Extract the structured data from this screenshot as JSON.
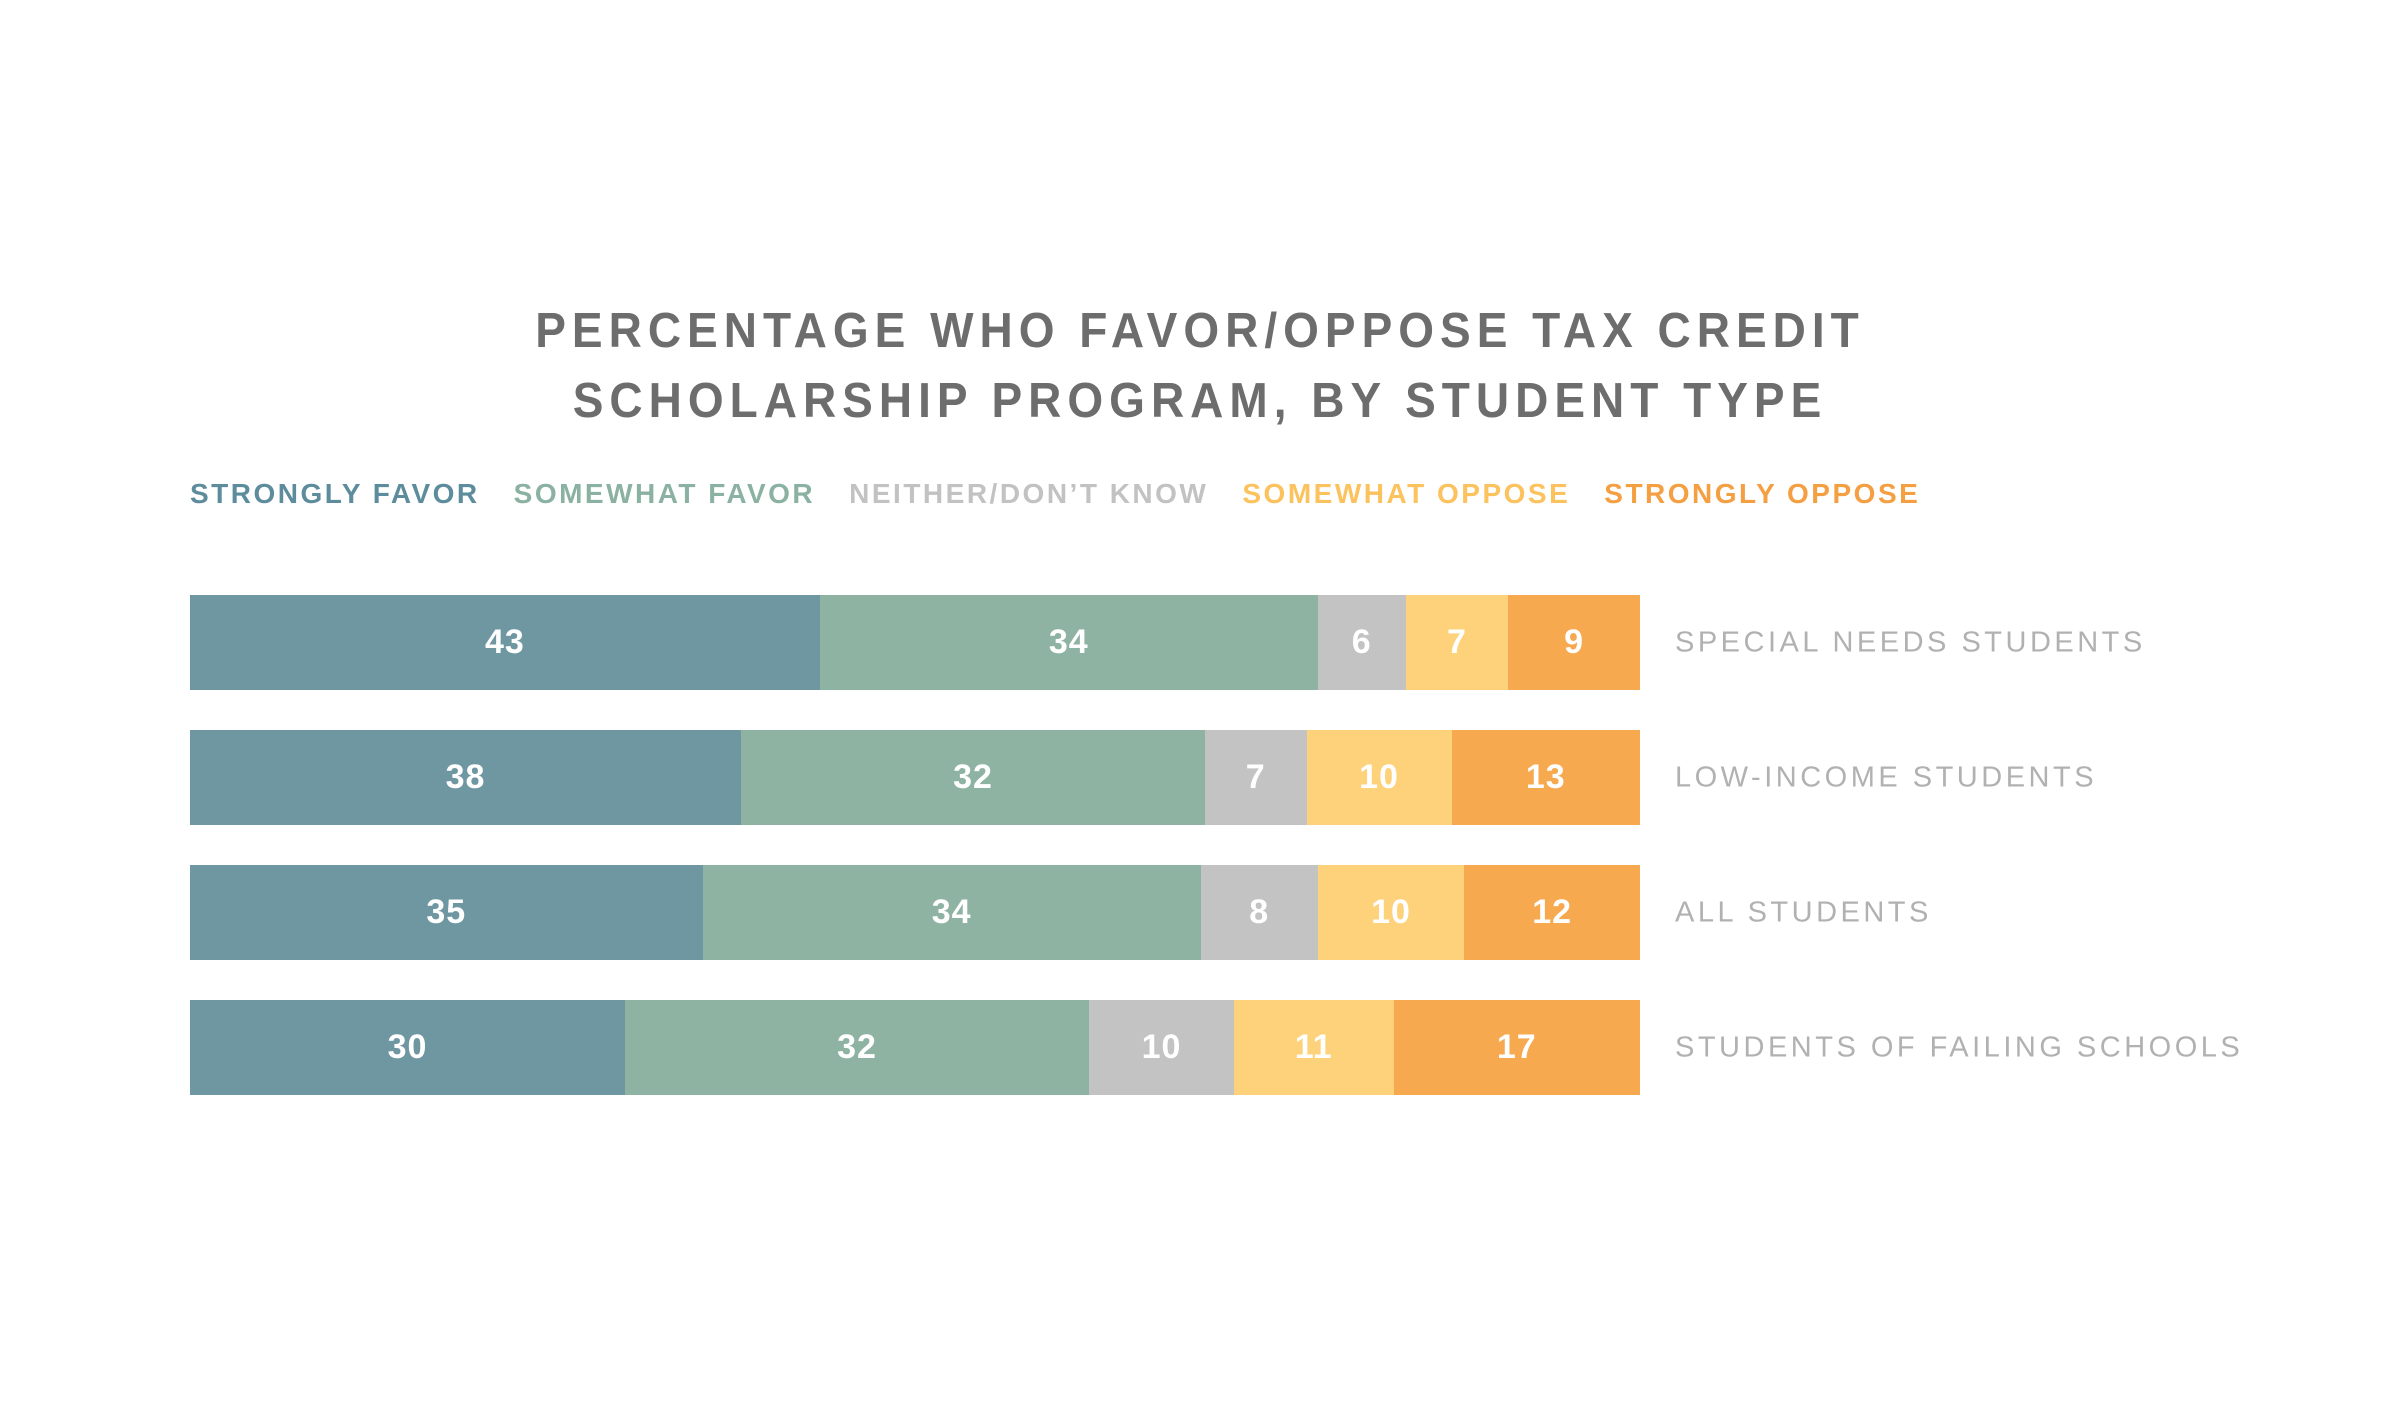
{
  "title": {
    "line1": "PERCENTAGE WHO FAVOR/OPPOSE TAX CREDIT",
    "line2": "SCHOLARSHIP PROGRAM, BY STUDENT TYPE"
  },
  "legend": [
    {
      "label": "STRONGLY FAVOR",
      "color": "#5d8d9d"
    },
    {
      "label": "SOMEWHAT FAVOR",
      "color": "#8ab1a1"
    },
    {
      "label": "NEITHER/DON’T KNOW",
      "color": "#c2c2c2"
    },
    {
      "label": "SOMEWHAT OPPOSE",
      "color": "#fbc25e"
    },
    {
      "label": "STRONGLY OPPOSE",
      "color": "#f59f43"
    }
  ],
  "chart_data": {
    "type": "bar",
    "orientation": "horizontal-stacked",
    "title": "PERCENTAGE WHO FAVOR/OPPOSE TAX CREDIT SCHOLARSHIP PROGRAM, BY STUDENT TYPE",
    "categories": [
      "SPECIAL NEEDS STUDENTS",
      "LOW-INCOME STUDENTS",
      "ALL STUDENTS",
      "STUDENTS OF FAILING SCHOOLS"
    ],
    "series": [
      {
        "name": "STRONGLY FAVOR",
        "color": "#6e97a2",
        "values": [
          43,
          38,
          35,
          30
        ]
      },
      {
        "name": "SOMEWHAT FAVOR",
        "color": "#8fb3a3",
        "values": [
          34,
          32,
          34,
          32
        ]
      },
      {
        "name": "NEITHER/DON'T KNOW",
        "color": "#c3c3c3",
        "values": [
          6,
          7,
          8,
          10
        ]
      },
      {
        "name": "SOMEWHAT OPPOSE",
        "color": "#fed17b",
        "values": [
          7,
          10,
          10,
          11
        ]
      },
      {
        "name": "STRONGLY OPPOSE",
        "color": "#f7a94f",
        "values": [
          9,
          13,
          12,
          17
        ]
      }
    ],
    "value_labels": "inside-white",
    "legend_position": "top-left",
    "xlim": [
      0,
      100
    ],
    "grid": false
  }
}
